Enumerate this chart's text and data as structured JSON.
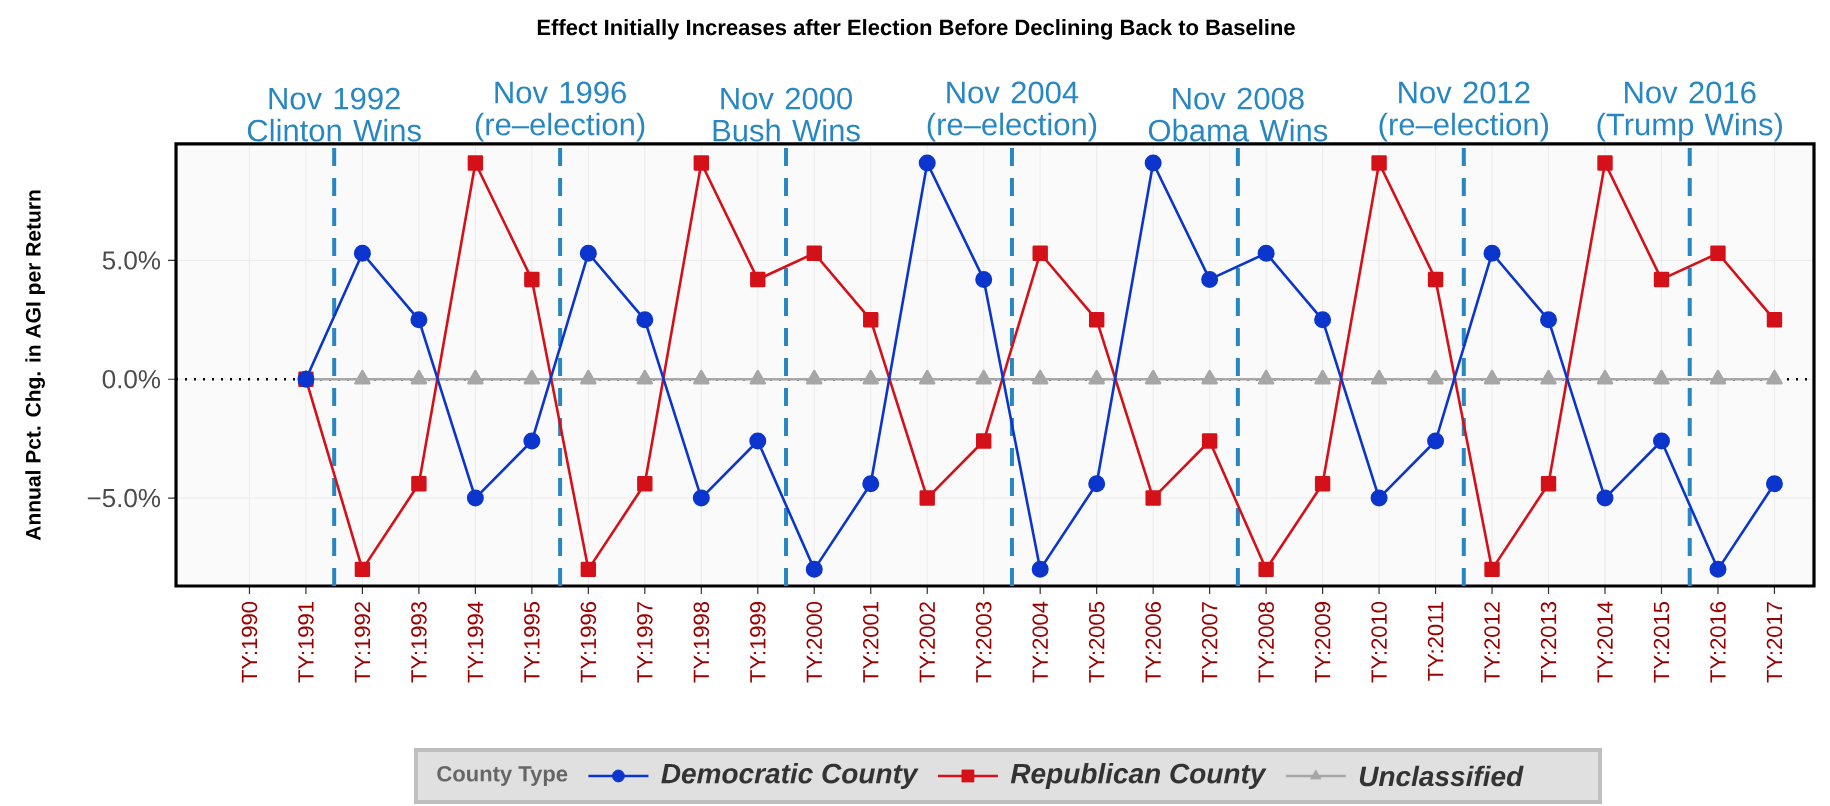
{
  "chart_data": {
    "type": "line",
    "title": "Effect Initially Increases after Election Before Declining Back to Baseline",
    "ylabel": "Annual Pct. Chg. in AGI per Return",
    "legend_title": "County Type",
    "x": [
      1991,
      1992,
      1993,
      1994,
      1995,
      1996,
      1997,
      1998,
      1999,
      2000,
      2001,
      2002,
      2003,
      2004,
      2005,
      2006,
      2007,
      2008,
      2009,
      2010,
      2011,
      2012,
      2013,
      2014,
      2015,
      2016,
      2017
    ],
    "series": [
      {
        "name": "Democratic County",
        "color": "#0b35cc",
        "marker": "circle",
        "values": [
          0,
          5.3,
          2.5,
          -5.0,
          -2.6,
          5.3,
          2.5,
          -5.0,
          -2.6,
          -8.0,
          -4.4,
          9.1,
          4.2,
          -8.0,
          -4.4,
          9.1,
          4.2,
          5.3,
          2.5,
          -5.0,
          -2.6,
          5.3,
          2.5,
          -5.0,
          -2.6,
          -8.0,
          -4.4
        ]
      },
      {
        "name": "Republican County",
        "color": "#d41018",
        "marker": "square",
        "values": [
          0,
          -8.0,
          -4.4,
          9.1,
          4.2,
          -8.0,
          -4.4,
          9.1,
          4.2,
          5.3,
          2.5,
          -5.0,
          -2.6,
          5.3,
          2.5,
          -5.0,
          -2.6,
          -8.0,
          -4.4,
          9.1,
          4.2,
          -8.0,
          -4.4,
          9.1,
          4.2,
          5.3,
          2.5
        ]
      },
      {
        "name": "Unclassified",
        "color": "#a6a6a6",
        "marker": "triangle",
        "values": [
          0,
          0,
          0,
          0,
          0,
          0,
          0,
          0,
          0,
          0,
          0,
          0,
          0,
          0,
          0,
          0,
          0,
          0,
          0,
          0,
          0,
          0,
          0,
          0,
          0,
          0,
          0
        ]
      }
    ],
    "xlim": [
      1988.7,
      2017.7
    ],
    "ylim": [
      -8.7,
      9.9
    ],
    "xticks": [
      {
        "value": 1990,
        "label": "TY:1990"
      },
      {
        "value": 1991,
        "label": "TY:1991"
      },
      {
        "value": 1992,
        "label": "TY:1992"
      },
      {
        "value": 1993,
        "label": "TY:1993"
      },
      {
        "value": 1994,
        "label": "TY:1994"
      },
      {
        "value": 1995,
        "label": "TY:1995"
      },
      {
        "value": 1996,
        "label": "TY:1996"
      },
      {
        "value": 1997,
        "label": "TY:1997"
      },
      {
        "value": 1998,
        "label": "TY:1998"
      },
      {
        "value": 1999,
        "label": "TY:1999"
      },
      {
        "value": 2000,
        "label": "TY:2000"
      },
      {
        "value": 2001,
        "label": "TY:2001"
      },
      {
        "value": 2002,
        "label": "TY:2002"
      },
      {
        "value": 2003,
        "label": "TY:2003"
      },
      {
        "value": 2004,
        "label": "TY:2004"
      },
      {
        "value": 2005,
        "label": "TY:2005"
      },
      {
        "value": 2006,
        "label": "TY:2006"
      },
      {
        "value": 2007,
        "label": "TY:2007"
      },
      {
        "value": 2008,
        "label": "TY:2008"
      },
      {
        "value": 2009,
        "label": "TY:2009"
      },
      {
        "value": 2010,
        "label": "TY:2010"
      },
      {
        "value": 2011,
        "label": "TY:2011"
      },
      {
        "value": 2012,
        "label": "TY:2012"
      },
      {
        "value": 2013,
        "label": "TY:2013"
      },
      {
        "value": 2014,
        "label": "TY:2014"
      },
      {
        "value": 2015,
        "label": "TY:2015"
      },
      {
        "value": 2016,
        "label": "TY:2016"
      },
      {
        "value": 2017,
        "label": "TY:2017"
      }
    ],
    "yticks": [
      {
        "value": -5,
        "label": "−5.0%"
      },
      {
        "value": 0,
        "label": "0.0%"
      },
      {
        "value": 5,
        "label": "5.0%"
      }
    ],
    "ref_lines": [
      {
        "axis": "y",
        "value": 0,
        "color": "#000000",
        "line_style": "dotted"
      },
      {
        "axis": "x",
        "value": 1991.5,
        "label": "Nov 1992 Clinton Wins",
        "color": "#2887c3",
        "line_style": "dashed"
      },
      {
        "axis": "x",
        "value": 1995.5,
        "label": "Nov 1996 (re–election)",
        "color": "#2887c3",
        "line_style": "dashed"
      },
      {
        "axis": "x",
        "value": 1999.5,
        "label": "Nov 2000 Bush Wins",
        "color": "#2887c3",
        "line_style": "dashed"
      },
      {
        "axis": "x",
        "value": 2003.5,
        "label": "Nov 2004 (re–election)",
        "color": "#2887c3",
        "line_style": "dashed"
      },
      {
        "axis": "x",
        "value": 2007.5,
        "label": "Nov 2008 Obama Wins",
        "color": "#2887c3",
        "line_style": "dashed"
      },
      {
        "axis": "x",
        "value": 2011.5,
        "label": "Nov 2012 (re–election)",
        "color": "#2887c3",
        "line_style": "dashed"
      },
      {
        "axis": "x",
        "value": 2015.5,
        "label": "Nov 2016 (Trump Wins)",
        "color": "#2887c3",
        "line_style": "dashed"
      }
    ],
    "grid": true,
    "legend": "bottom",
    "line_style": "solid"
  }
}
